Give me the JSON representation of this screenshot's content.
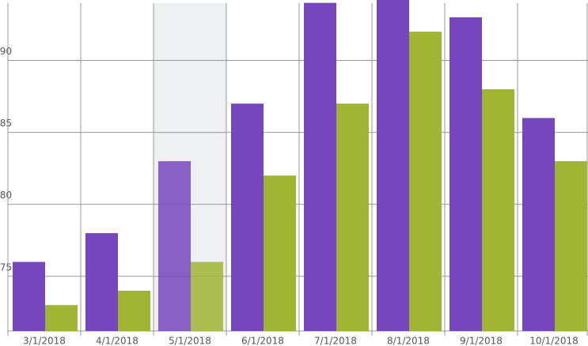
{
  "chart_data": {
    "type": "bar",
    "categories": [
      "3/1/2018",
      "4/1/2018",
      "5/1/2018",
      "6/1/2018",
      "7/1/2018",
      "8/1/2018",
      "9/1/2018",
      "10/1/2018"
    ],
    "series": [
      {
        "color": "#7646be",
        "values": [
          76,
          78,
          83,
          87,
          94,
          94.2,
          93,
          86
        ]
      },
      {
        "color": "#a0b533",
        "values": [
          73,
          74,
          76,
          82,
          87,
          92,
          88,
          83
        ]
      }
    ],
    "ylim": [
      71.2,
      94.2
    ],
    "yticks": [
      75,
      80,
      85,
      90
    ],
    "grid": true,
    "highlight": 2
  }
}
